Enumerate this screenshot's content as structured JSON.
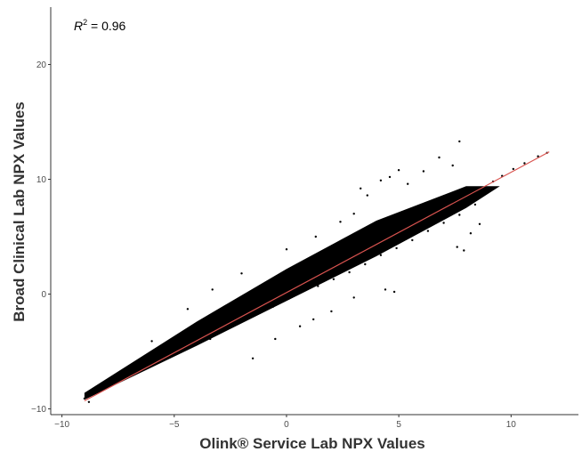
{
  "chart_data": {
    "type": "scatter",
    "xlabel": "Olink® Service Lab NPX Values",
    "ylabel": "Broad Clinical Lab NPX Values",
    "xlim": [
      -10.5,
      13
    ],
    "ylim": [
      -10.5,
      25
    ],
    "x_ticks": [
      "−10",
      "−5",
      "0",
      "5",
      "10"
    ],
    "x_tick_values": [
      -10,
      -5,
      0,
      5,
      10
    ],
    "y_ticks": [
      "−10",
      "0",
      "10",
      "20"
    ],
    "y_tick_values": [
      -10,
      0,
      10,
      20
    ],
    "grid": false,
    "annotation": {
      "r2_label": "R",
      "r2_exponent": "2",
      "r2_value": " = 0.96"
    },
    "fit_line": {
      "x": [
        -9,
        11.7
      ],
      "y": [
        -9.3,
        12.4
      ],
      "color": "#d9534f"
    },
    "point_color": "#000000",
    "points": [
      [
        -9,
        -9.1
      ],
      [
        -8.8,
        -9.4
      ],
      [
        -7.6,
        -7.4
      ],
      [
        -7.3,
        -7.2
      ],
      [
        -6.7,
        -6.5
      ],
      [
        -6.4,
        -6.6
      ],
      [
        -5.9,
        -5.3
      ],
      [
        -5.6,
        -4.8
      ],
      [
        -5.2,
        -5.0
      ],
      [
        -4.9,
        -4.4
      ],
      [
        -4.6,
        -4.8
      ],
      [
        -4.3,
        -3.6
      ],
      [
        -4.0,
        -4.2
      ],
      [
        -3.7,
        -3.0
      ],
      [
        -3.4,
        -3.9
      ],
      [
        -3.0,
        -2.6
      ],
      [
        -2.7,
        -3.1
      ],
      [
        -2.3,
        -1.8
      ],
      [
        -2.0,
        -2.4
      ],
      [
        -1.7,
        -1.0
      ],
      [
        -1.3,
        -1.7
      ],
      [
        -1.0,
        -0.3
      ],
      [
        -0.6,
        -1.1
      ],
      [
        -0.2,
        0.5
      ],
      [
        0.1,
        -0.4
      ],
      [
        0.4,
        1.2
      ],
      [
        0.7,
        0.2
      ],
      [
        1.1,
        1.9
      ],
      [
        1.4,
        0.7
      ],
      [
        1.8,
        2.6
      ],
      [
        2.1,
        1.3
      ],
      [
        2.5,
        3.3
      ],
      [
        2.8,
        1.9
      ],
      [
        3.2,
        4.0
      ],
      [
        3.5,
        2.6
      ],
      [
        3.9,
        4.7
      ],
      [
        4.2,
        3.4
      ],
      [
        4.6,
        5.4
      ],
      [
        4.9,
        4.0
      ],
      [
        5.3,
        6.0
      ],
      [
        5.6,
        4.7
      ],
      [
        6.0,
        6.6
      ],
      [
        6.3,
        5.5
      ],
      [
        6.7,
        7.3
      ],
      [
        7.0,
        6.2
      ],
      [
        7.4,
        8.0
      ],
      [
        7.7,
        6.9
      ],
      [
        8.1,
        8.5
      ],
      [
        8.4,
        7.8
      ],
      [
        8.8,
        9.2
      ],
      [
        9.2,
        9.8
      ],
      [
        9.6,
        10.3
      ],
      [
        10.1,
        10.9
      ],
      [
        10.6,
        11.4
      ],
      [
        11.2,
        12.0
      ],
      [
        11.6,
        12.3
      ],
      [
        3.6,
        8.6
      ],
      [
        4.2,
        9.9
      ],
      [
        5.0,
        10.8
      ],
      [
        5.4,
        9.6
      ],
      [
        4.6,
        10.2
      ],
      [
        3.3,
        9.2
      ],
      [
        7.7,
        13.3
      ],
      [
        6.8,
        11.9
      ],
      [
        6.1,
        10.7
      ],
      [
        7.4,
        11.2
      ],
      [
        3.0,
        7.0
      ],
      [
        2.4,
        6.3
      ],
      [
        4.4,
        0.4
      ],
      [
        4.8,
        0.2
      ],
      [
        7.6,
        4.1
      ],
      [
        8.2,
        5.3
      ],
      [
        7.9,
        3.8
      ],
      [
        8.6,
        6.1
      ],
      [
        -1.5,
        -5.6
      ],
      [
        -0.5,
        -3.9
      ],
      [
        0.6,
        -2.8
      ],
      [
        1.2,
        -2.2
      ],
      [
        -3.3,
        0.4
      ],
      [
        -4.4,
        -1.3
      ],
      [
        -2.0,
        1.8
      ],
      [
        0.0,
        3.9
      ],
      [
        1.3,
        5.0
      ],
      [
        2.0,
        -1.5
      ],
      [
        3.0,
        -0.3
      ],
      [
        -6.0,
        -4.1
      ]
    ]
  }
}
